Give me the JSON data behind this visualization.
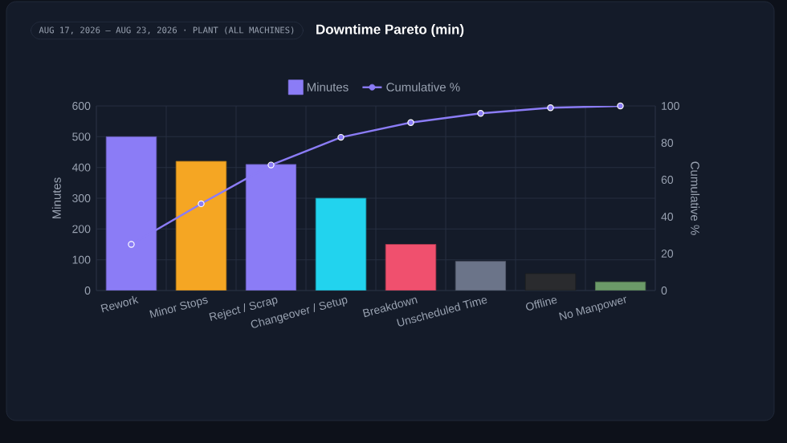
{
  "chart_data": {
    "type": "bar",
    "title": "Downtime Pareto (min)",
    "subtitle": "AUG 17, 2026 – AUG 23, 2026 · PLANT (ALL MACHINES)",
    "ylabel": "Minutes",
    "y2label": "Cumulative %",
    "categories": [
      "Rework",
      "Minor Stops",
      "Reject / Scrap",
      "Changeover / Setup",
      "Breakdown",
      "Unscheduled Time",
      "Offline",
      "No Manpower"
    ],
    "series": [
      {
        "name": "Minutes",
        "color": "#8b7cf6",
        "colors": [
          "#8b7cf6",
          "#f5a623",
          "#8b7cf6",
          "#22d3ee",
          "#f0506e",
          "#6b7489",
          "#2a2b2e",
          "#6b9a68"
        ],
        "values": [
          500,
          420,
          410,
          300,
          150,
          95,
          55,
          28
        ]
      },
      {
        "name": "Cumulative %",
        "type": "line",
        "axis": "y2",
        "color": "#8b7cf6",
        "values": [
          25,
          47,
          68,
          83,
          91,
          96,
          99,
          100
        ]
      }
    ],
    "ylim": [
      0,
      600
    ],
    "yticks": [
      0,
      100,
      200,
      300,
      400,
      500,
      600
    ],
    "y2lim": [
      0,
      100
    ],
    "y2ticks": [
      0,
      20,
      40,
      60,
      80,
      100
    ],
    "grid": true,
    "legend": "top",
    "marker": "circle"
  }
}
